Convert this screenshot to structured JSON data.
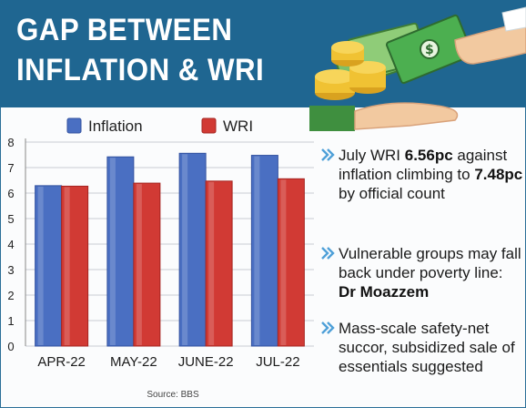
{
  "title": {
    "line1": "GAP BETWEEN",
    "line2": "INFLATION & WRI"
  },
  "colors": {
    "header_bg": "#1f6691",
    "inflation": "#4a6fc2",
    "wri": "#d13a34",
    "bullet_chevron": "#4fa0d8"
  },
  "illustration": {
    "icons": [
      "money-banknotes-icon",
      "coin-stack-icon",
      "hand-icon"
    ]
  },
  "chart_data": {
    "type": "bar",
    "categories": [
      "APR-22",
      "MAY-22",
      "JUNE-22",
      "JUL-22"
    ],
    "series": [
      {
        "name": "Inflation",
        "values": [
          6.29,
          7.42,
          7.56,
          7.48
        ]
      },
      {
        "name": "WRI",
        "values": [
          6.27,
          6.39,
          6.47,
          6.56
        ]
      }
    ],
    "ylim": [
      0,
      8
    ],
    "yticks": [
      0,
      1,
      2,
      3,
      4,
      5,
      6,
      7,
      8
    ],
    "grid": true,
    "legend": "top",
    "source": "Source: BBS"
  },
  "bullets": [
    {
      "parts": [
        {
          "text": "July WRI ",
          "bold": false
        },
        {
          "text": "6.56pc",
          "bold": true
        },
        {
          "text": " against inflation climbing to ",
          "bold": false
        },
        {
          "text": "7.48pc",
          "bold": true
        },
        {
          "text": " by official count",
          "bold": false
        }
      ]
    },
    {
      "parts": [
        {
          "text": "Vulnerable groups may fall back under poverty line: ",
          "bold": false
        },
        {
          "text": "Dr Moazzem",
          "bold": true
        }
      ]
    },
    {
      "parts": [
        {
          "text": "Mass-scale safety-net succor, subsidized sale of essentials suggested",
          "bold": false
        }
      ]
    }
  ]
}
